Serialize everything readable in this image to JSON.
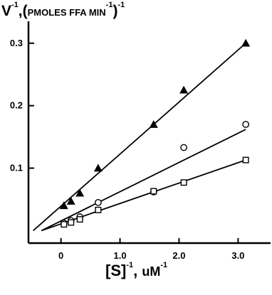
{
  "chart_data": {
    "type": "scatter",
    "title": "",
    "ylabel": {
      "main": "V",
      "main_exp": "-1",
      "unit_open": ",(",
      "unit": "PMOLES FFA MIN",
      "unit_exp": "-1",
      "unit_close": ")",
      "outer_exp": "-1"
    },
    "xlabel": {
      "main": "[S]",
      "main_exp": "-1",
      "sep": ",",
      "unit": "uM",
      "unit_exp": "-1"
    },
    "xlim": [
      -0.55,
      3.55
    ],
    "ylim": [
      -0.02,
      0.335
    ],
    "xticks": [
      {
        "value": 0,
        "label": "0"
      },
      {
        "value": 1,
        "label": "1.0"
      },
      {
        "value": 2,
        "label": "2.0"
      },
      {
        "value": 3,
        "label": "3.0"
      }
    ],
    "yticks": [
      {
        "value": 0.1,
        "label": "0.1"
      },
      {
        "value": 0.2,
        "label": "0.2"
      },
      {
        "value": 0.3,
        "label": "0.3"
      }
    ],
    "grid": false,
    "legend": "none",
    "series": [
      {
        "marker": "triangle-filled",
        "color": "#000000",
        "x": [
          0.05,
          0.17,
          0.32,
          0.63,
          1.57,
          2.08,
          3.13
        ],
        "y": [
          0.04,
          0.047,
          0.06,
          0.1,
          0.17,
          0.225,
          0.3
        ],
        "fit_line": {
          "x": [
            -0.47,
            3.13
          ],
          "y": [
            0.0,
            0.3
          ]
        }
      },
      {
        "marker": "circle-open",
        "color": "#000000",
        "x": [
          0.05,
          0.17,
          0.32,
          0.63,
          1.57,
          2.08,
          3.13
        ],
        "y": [
          0.012,
          0.016,
          0.022,
          0.045,
          0.062,
          0.133,
          0.17
        ],
        "fit_line": {
          "x": [
            -0.33,
            3.13
          ],
          "y": [
            0.0,
            0.162
          ]
        }
      },
      {
        "marker": "square-open",
        "color": "#000000",
        "x": [
          0.05,
          0.17,
          0.32,
          0.63,
          1.57,
          2.08,
          3.13
        ],
        "y": [
          0.01,
          0.013,
          0.018,
          0.033,
          0.063,
          0.077,
          0.113
        ],
        "fit_line": {
          "x": [
            -0.33,
            3.13
          ],
          "y": [
            0.0,
            0.113
          ]
        }
      }
    ]
  }
}
